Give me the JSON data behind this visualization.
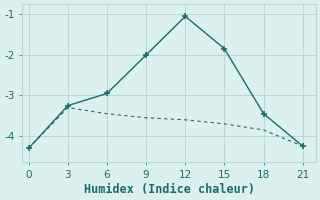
{
  "x": [
    0,
    3,
    6,
    9,
    12,
    15,
    18,
    21
  ],
  "y_curve": [
    -4.3,
    -3.25,
    -2.95,
    -2.0,
    -1.05,
    -1.85,
    -3.45,
    -4.25
  ],
  "y_line": [
    -4.3,
    -3.3,
    -3.45,
    -3.55,
    -3.6,
    -3.7,
    -3.85,
    -4.25
  ],
  "line_color": "#1a6b6b",
  "bg_color": "#ddf0f0",
  "grid_color": "#b8d8d8",
  "xlabel": "Humidex (Indice chaleur)",
  "xlim": [
    -0.5,
    22
  ],
  "ylim": [
    -4.65,
    -0.75
  ],
  "xticks": [
    0,
    3,
    6,
    9,
    12,
    15,
    18,
    21
  ],
  "yticks": [
    -4,
    -3,
    -2,
    -1
  ],
  "xlabel_fontsize": 8.5,
  "tick_fontsize": 7.5
}
